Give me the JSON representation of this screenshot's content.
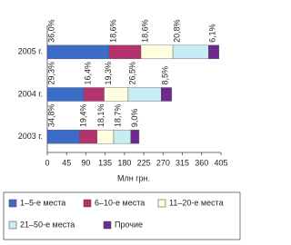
{
  "chart_data": {
    "type": "stacked-barh",
    "categories": [
      "2005 г.",
      "2004 г.",
      "2003 г."
    ],
    "series": [
      {
        "name": "1–5-е места",
        "color": "#3a6cc8",
        "values": [
          144,
          85,
          74.5
        ],
        "share_labels": [
          "36,0%",
          "29,3%",
          "34,8%"
        ]
      },
      {
        "name": "6–10-е места",
        "color": "#b3336e",
        "values": [
          74.4,
          47.6,
          41.5
        ],
        "share_labels": [
          "18,6%",
          "16,4%",
          "19,4%"
        ]
      },
      {
        "name": "11–20-е места",
        "color": "#ffffe0",
        "values": [
          74.4,
          56,
          38.7
        ],
        "share_labels": [
          "18,6%",
          "19,3%",
          "18,1%"
        ]
      },
      {
        "name": "21–50-е места",
        "color": "#c6ecf4",
        "values": [
          83.2,
          76.9,
          40
        ],
        "share_labels": [
          "20,8%",
          "26,5%",
          "18,7%"
        ]
      },
      {
        "name": "Прочие",
        "color": "#6b2a8c",
        "values": [
          24.4,
          24.7,
          19.3
        ],
        "share_labels": [
          "6,1%",
          "8,5%",
          "9,0%"
        ]
      }
    ],
    "xlabel": "Млн грн.",
    "xlim": [
      0,
      405
    ],
    "xticks": [
      0,
      45,
      90,
      135,
      180,
      225,
      270,
      315,
      360,
      405
    ]
  }
}
